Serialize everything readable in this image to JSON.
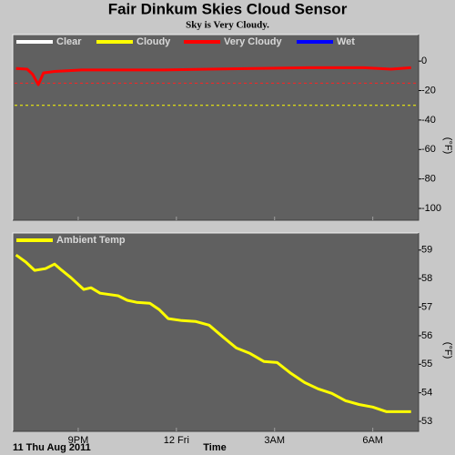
{
  "chart_data": [
    {
      "type": "line",
      "title": "Fair Dinkum Skies Cloud Sensor",
      "subtitle": "Sky is Very Cloudy.",
      "y_label": "(°F)",
      "x": [
        19.1,
        19.44,
        19.61,
        19.78,
        19.94,
        20.28,
        21.11,
        22.22,
        23.61,
        25.0,
        26.39,
        28.06,
        29.72,
        30.56,
        31.17
      ],
      "xlim": [
        19,
        31.4
      ],
      "ylim": [
        -108,
        18
      ],
      "yticks": [
        0,
        -20,
        -40,
        -60,
        -80,
        -100
      ],
      "reference_lines": [
        {
          "value": -15,
          "color": "#ff2020"
        },
        {
          "value": -30,
          "color": "#ffff00"
        }
      ],
      "series": [
        {
          "name": "Clear",
          "color": "#ffffff",
          "values": [
            null,
            null,
            null,
            null,
            null,
            null,
            null,
            null,
            null,
            null,
            null,
            null,
            null,
            null,
            null
          ]
        },
        {
          "name": "Cloudy",
          "color": "#ffff00",
          "values": [
            null,
            null,
            null,
            null,
            null,
            null,
            null,
            null,
            null,
            null,
            null,
            null,
            null,
            null,
            null
          ]
        },
        {
          "name": "Very Cloudy",
          "color": "#ff0000",
          "values": [
            -5,
            -5.5,
            -9,
            -16,
            -8,
            -7,
            -6,
            -6,
            -6,
            -5.5,
            -5,
            -4.5,
            -4.5,
            -5.5,
            -4.5
          ]
        },
        {
          "name": "Wet",
          "color": "#0000ff",
          "values": [
            null,
            null,
            null,
            null,
            null,
            null,
            null,
            null,
            null,
            null,
            null,
            null,
            null,
            null,
            null
          ]
        }
      ]
    },
    {
      "type": "line",
      "y_label": "(°F)",
      "x_label": "Time",
      "date_label": "11 Thu Aug 2011",
      "x": [
        19.1,
        19.4,
        19.67,
        20.0,
        20.28,
        20.5,
        20.78,
        21.17,
        21.39,
        21.67,
        22.22,
        22.5,
        22.78,
        23.19,
        23.47,
        23.75,
        24.17,
        24.58,
        25.0,
        25.42,
        25.83,
        26.25,
        26.67,
        27.08,
        27.5,
        27.92,
        28.33,
        28.75,
        29.17,
        29.58,
        30.0,
        30.42,
        30.83,
        31.17
      ],
      "xlim": [
        19,
        31.4
      ],
      "xticks": [
        {
          "value": 21,
          "label": "9PM"
        },
        {
          "value": 24,
          "label": "12 Fri"
        },
        {
          "value": 27,
          "label": "3AM"
        },
        {
          "value": 30,
          "label": "6AM"
        }
      ],
      "ylim": [
        52.65,
        59.6
      ],
      "yticks": [
        53,
        54,
        55,
        56,
        57,
        58,
        59
      ],
      "series": [
        {
          "name": "Ambient Temp",
          "color": "#ffff00",
          "values": [
            58.83,
            58.58,
            58.29,
            58.35,
            58.51,
            58.29,
            58.03,
            57.62,
            57.68,
            57.49,
            57.4,
            57.24,
            57.17,
            57.14,
            56.92,
            56.6,
            56.53,
            56.5,
            56.37,
            55.96,
            55.57,
            55.38,
            55.1,
            55.06,
            54.68,
            54.36,
            54.14,
            53.98,
            53.72,
            53.59,
            53.5,
            53.34,
            53.34,
            53.34
          ]
        }
      ]
    }
  ]
}
